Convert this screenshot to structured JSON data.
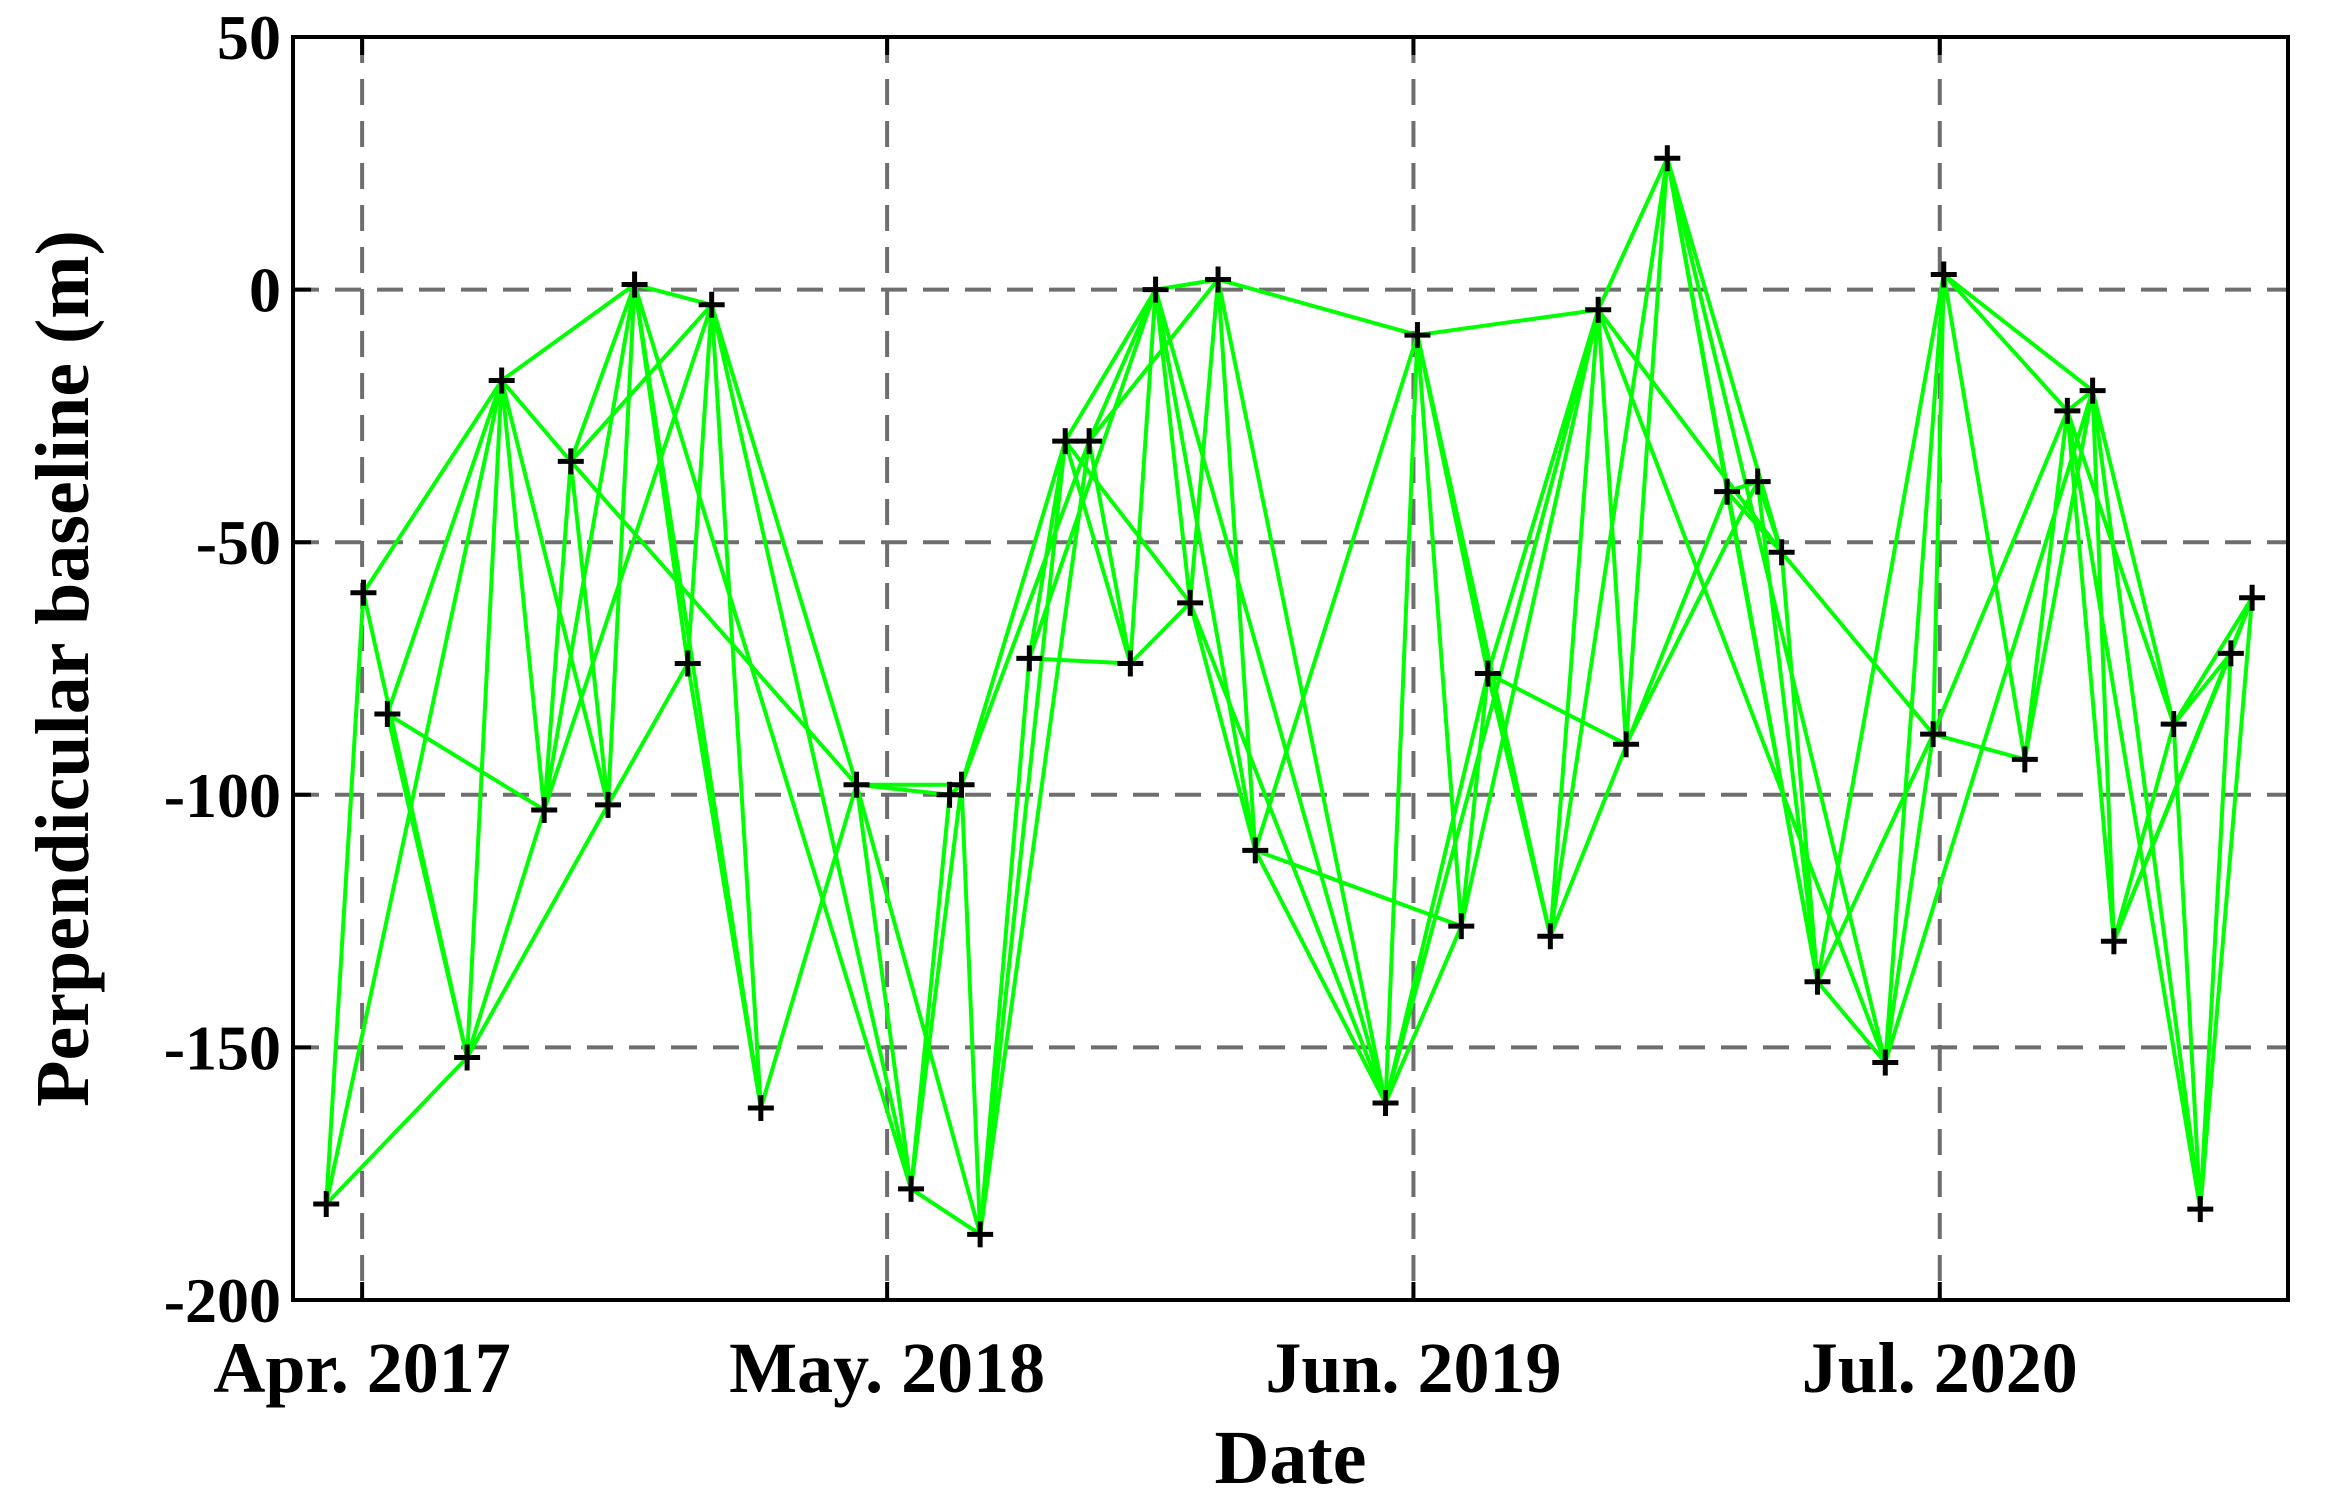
{
  "chart_data": {
    "type": "line",
    "xlabel": "Date",
    "ylabel": "Perpendicular baseline  (m)",
    "xlim": [
      "2017-02-08",
      "2021-03-20"
    ],
    "ylim": [
      -200,
      50
    ],
    "grid": true,
    "x_ticks": [
      {
        "date": "2017-04-01",
        "label": "Apr. 2017"
      },
      {
        "date": "2018-05-01",
        "label": "May. 2018"
      },
      {
        "date": "2019-06-01",
        "label": "Jun. 2019"
      },
      {
        "date": "2020-07-01",
        "label": "Jul. 2020"
      }
    ],
    "y_ticks": [
      50,
      0,
      -50,
      -100,
      -150,
      -200
    ],
    "line_color": "#00ff00",
    "marker": "+",
    "marker_color": "#000000",
    "acquisitions": [
      {
        "date": "2017-03-05",
        "baseline": -181
      },
      {
        "date": "2017-04-02",
        "baseline": -60
      },
      {
        "date": "2017-04-20",
        "baseline": -84
      },
      {
        "date": "2017-06-19",
        "baseline": -152
      },
      {
        "date": "2017-07-15",
        "baseline": -18
      },
      {
        "date": "2017-08-16",
        "baseline": -103
      },
      {
        "date": "2017-09-05",
        "baseline": -34
      },
      {
        "date": "2017-10-03",
        "baseline": -102
      },
      {
        "date": "2017-10-23",
        "baseline": 1
      },
      {
        "date": "2017-12-02",
        "baseline": -74
      },
      {
        "date": "2017-12-20",
        "baseline": -3
      },
      {
        "date": "2018-01-26",
        "baseline": -162
      },
      {
        "date": "2018-04-08",
        "baseline": -98
      },
      {
        "date": "2018-05-19",
        "baseline": -178
      },
      {
        "date": "2018-06-17",
        "baseline": -100
      },
      {
        "date": "2018-06-26",
        "baseline": -98
      },
      {
        "date": "2018-07-10",
        "baseline": -187
      },
      {
        "date": "2018-08-16",
        "baseline": -73
      },
      {
        "date": "2018-09-12",
        "baseline": -30
      },
      {
        "date": "2018-09-30",
        "baseline": -30
      },
      {
        "date": "2018-10-31",
        "baseline": -74
      },
      {
        "date": "2018-11-19",
        "baseline": 0
      },
      {
        "date": "2018-12-15",
        "baseline": -62
      },
      {
        "date": "2019-01-05",
        "baseline": 2
      },
      {
        "date": "2019-02-02",
        "baseline": -111
      },
      {
        "date": "2019-05-11",
        "baseline": -161
      },
      {
        "date": "2019-06-04",
        "baseline": -9
      },
      {
        "date": "2019-07-07",
        "baseline": -126
      },
      {
        "date": "2019-07-27",
        "baseline": -76
      },
      {
        "date": "2019-09-12",
        "baseline": -128
      },
      {
        "date": "2019-10-18",
        "baseline": -4
      },
      {
        "date": "2019-11-08",
        "baseline": -90
      },
      {
        "date": "2019-12-09",
        "baseline": 26
      },
      {
        "date": "2020-01-23",
        "baseline": -40
      },
      {
        "date": "2020-02-15",
        "baseline": -38
      },
      {
        "date": "2020-03-04",
        "baseline": -52
      },
      {
        "date": "2020-03-31",
        "baseline": -137
      },
      {
        "date": "2020-05-21",
        "baseline": -153
      },
      {
        "date": "2020-06-26",
        "baseline": -88
      },
      {
        "date": "2020-07-04",
        "baseline": 3
      },
      {
        "date": "2020-09-03",
        "baseline": -93
      },
      {
        "date": "2020-10-05",
        "baseline": -24
      },
      {
        "date": "2020-10-24",
        "baseline": -20
      },
      {
        "date": "2020-11-09",
        "baseline": -129
      },
      {
        "date": "2020-12-24",
        "baseline": -86
      },
      {
        "date": "2021-01-13",
        "baseline": -182
      },
      {
        "date": "2021-02-05",
        "baseline": -72
      },
      {
        "date": "2021-02-21",
        "baseline": -61
      }
    ],
    "interferogram_pairs": [
      [
        0,
        1
      ],
      [
        0,
        4
      ],
      [
        0,
        3
      ],
      [
        1,
        3
      ],
      [
        1,
        4
      ],
      [
        2,
        3
      ],
      [
        2,
        5
      ],
      [
        2,
        4
      ],
      [
        3,
        4
      ],
      [
        3,
        5
      ],
      [
        3,
        7
      ],
      [
        4,
        5
      ],
      [
        4,
        6
      ],
      [
        4,
        7
      ],
      [
        4,
        8
      ],
      [
        5,
        6
      ],
      [
        5,
        8
      ],
      [
        5,
        10
      ],
      [
        6,
        7
      ],
      [
        6,
        8
      ],
      [
        6,
        12
      ],
      [
        6,
        10
      ],
      [
        7,
        8
      ],
      [
        7,
        9
      ],
      [
        8,
        9
      ],
      [
        8,
        10
      ],
      [
        8,
        11
      ],
      [
        8,
        13
      ],
      [
        9,
        10
      ],
      [
        9,
        11
      ],
      [
        10,
        11
      ],
      [
        10,
        12
      ],
      [
        10,
        13
      ],
      [
        11,
        12
      ],
      [
        12,
        13
      ],
      [
        12,
        14
      ],
      [
        12,
        15
      ],
      [
        12,
        16
      ],
      [
        13,
        14
      ],
      [
        13,
        15
      ],
      [
        13,
        16
      ],
      [
        14,
        15
      ],
      [
        15,
        16
      ],
      [
        15,
        18
      ],
      [
        15,
        19
      ],
      [
        16,
        17
      ],
      [
        16,
        18
      ],
      [
        16,
        19
      ],
      [
        17,
        20
      ],
      [
        17,
        18
      ],
      [
        17,
        21
      ],
      [
        18,
        19
      ],
      [
        18,
        20
      ],
      [
        18,
        21
      ],
      [
        18,
        22
      ],
      [
        19,
        20
      ],
      [
        19,
        21
      ],
      [
        19,
        23
      ],
      [
        20,
        21
      ],
      [
        20,
        22
      ],
      [
        21,
        22
      ],
      [
        21,
        23
      ],
      [
        21,
        24
      ],
      [
        21,
        25
      ],
      [
        22,
        23
      ],
      [
        22,
        24
      ],
      [
        22,
        25
      ],
      [
        23,
        24
      ],
      [
        23,
        26
      ],
      [
        23,
        25
      ],
      [
        24,
        25
      ],
      [
        24,
        26
      ],
      [
        24,
        27
      ],
      [
        25,
        26
      ],
      [
        25,
        27
      ],
      [
        25,
        28
      ],
      [
        25,
        30
      ],
      [
        26,
        27
      ],
      [
        26,
        28
      ],
      [
        26,
        29
      ],
      [
        26,
        30
      ],
      [
        27,
        28
      ],
      [
        27,
        30
      ],
      [
        28,
        29
      ],
      [
        28,
        31
      ],
      [
        28,
        30
      ],
      [
        29,
        30
      ],
      [
        29,
        32
      ],
      [
        29,
        33
      ],
      [
        30,
        31
      ],
      [
        30,
        32
      ],
      [
        30,
        35
      ],
      [
        30,
        37
      ],
      [
        31,
        32
      ],
      [
        31,
        34
      ],
      [
        32,
        33
      ],
      [
        32,
        35
      ],
      [
        32,
        36
      ],
      [
        32,
        37
      ],
      [
        33,
        34
      ],
      [
        33,
        35
      ],
      [
        33,
        36
      ],
      [
        34,
        35
      ],
      [
        34,
        36
      ],
      [
        35,
        36
      ],
      [
        35,
        38
      ],
      [
        36,
        37
      ],
      [
        36,
        38
      ],
      [
        36,
        39
      ],
      [
        37,
        38
      ],
      [
        37,
        39
      ],
      [
        37,
        42
      ],
      [
        38,
        39
      ],
      [
        38,
        40
      ],
      [
        38,
        41
      ],
      [
        39,
        40
      ],
      [
        39,
        41
      ],
      [
        39,
        42
      ],
      [
        40,
        41
      ],
      [
        40,
        42
      ],
      [
        41,
        42
      ],
      [
        41,
        43
      ],
      [
        41,
        44
      ],
      [
        41,
        45
      ],
      [
        42,
        43
      ],
      [
        42,
        44
      ],
      [
        42,
        45
      ],
      [
        43,
        44
      ],
      [
        43,
        46
      ],
      [
        43,
        47
      ],
      [
        44,
        45
      ],
      [
        44,
        46
      ],
      [
        44,
        47
      ],
      [
        45,
        46
      ],
      [
        45,
        47
      ],
      [
        46,
        47
      ]
    ]
  }
}
